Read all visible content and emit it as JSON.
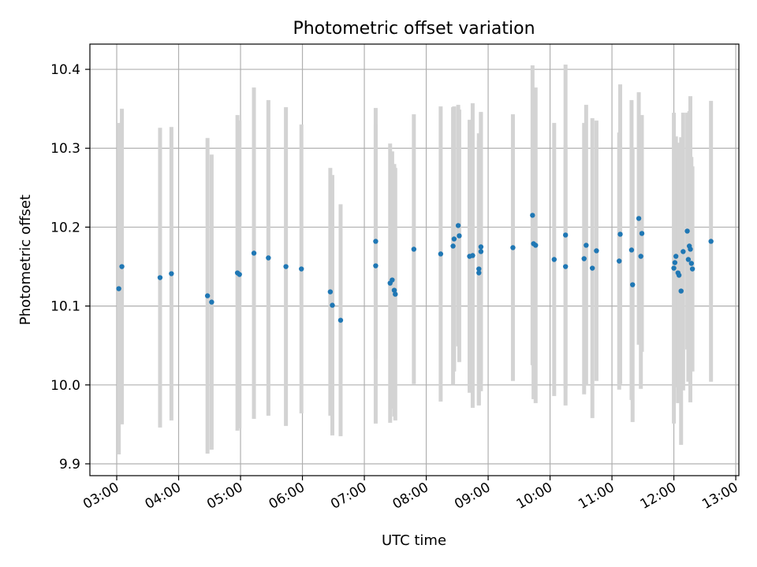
{
  "chart_data": {
    "type": "scatter",
    "title": "Photometric offset variation",
    "xlabel": "UTC time",
    "ylabel": "Photometric offset",
    "x_ticks": [
      "03:00",
      "04:00",
      "05:00",
      "06:00",
      "07:00",
      "08:00",
      "09:00",
      "10:00",
      "11:00",
      "12:00",
      "13:00"
    ],
    "y_ticks": [
      "9.9",
      "10.0",
      "10.1",
      "10.2",
      "10.3",
      "10.4"
    ],
    "xlim": [
      "02:34",
      "13:03"
    ],
    "ylim": [
      9.885,
      10.432
    ],
    "grid": true,
    "colors": {
      "points": "#1f77b4",
      "error_bars": "#d3d3d3",
      "grid": "#b0b0b0"
    },
    "series": [
      {
        "x": [
          "03:02",
          "03:05",
          "03:42",
          "03:53",
          "04:28",
          "04:32",
          "04:57",
          "04:59",
          "05:13",
          "05:27",
          "05:44",
          "05:59",
          "06:27",
          "06:29",
          "06:37",
          "07:11",
          "07:11",
          "07:25",
          "07:27",
          "07:29",
          "07:30",
          "07:48",
          "08:14",
          "08:26",
          "08:27",
          "08:31",
          "08:32",
          "08:42",
          "08:45",
          "08:51",
          "08:51",
          "08:53",
          "08:53",
          "09:24",
          "09:43",
          "09:44",
          "09:46",
          "10:04",
          "10:15",
          "10:15",
          "10:33",
          "10:35",
          "10:41",
          "10:45",
          "11:07",
          "11:08",
          "11:19",
          "11:20",
          "11:26",
          "11:28",
          "11:29",
          "12:00",
          "12:01",
          "12:02",
          "12:04",
          "12:05",
          "12:07",
          "12:09",
          "12:13",
          "12:14",
          "12:15",
          "12:16",
          "12:17",
          "12:18",
          "12:36"
        ],
        "y": [
          10.122,
          10.15,
          10.136,
          10.141,
          10.113,
          10.105,
          10.142,
          10.14,
          10.167,
          10.161,
          10.15,
          10.147,
          10.118,
          10.101,
          10.082,
          10.182,
          10.151,
          10.129,
          10.133,
          10.12,
          10.115,
          10.172,
          10.166,
          10.176,
          10.185,
          10.202,
          10.189,
          10.163,
          10.164,
          10.147,
          10.142,
          10.169,
          10.175,
          10.174,
          10.215,
          10.179,
          10.177,
          10.159,
          10.15,
          10.19,
          10.16,
          10.177,
          10.148,
          10.17,
          10.157,
          10.191,
          10.171,
          10.127,
          10.211,
          10.163,
          10.192,
          10.148,
          10.155,
          10.163,
          10.142,
          10.139,
          10.119,
          10.169,
          10.195,
          10.159,
          10.176,
          10.172,
          10.154,
          10.147,
          10.182
        ],
        "yerr": [
          0.21,
          0.2,
          0.19,
          0.186,
          0.2,
          0.187,
          0.2,
          0.195,
          0.21,
          0.2,
          0.202,
          0.183,
          0.157,
          0.165,
          0.147,
          0.148,
          0.2,
          0.177,
          0.163,
          0.16,
          0.16,
          0.171,
          0.187,
          0.176,
          0.168,
          0.153,
          0.16,
          0.173,
          0.193,
          0.172,
          0.168,
          0.177,
          0.17,
          0.169,
          0.19,
          0.197,
          0.2,
          0.173,
          0.154,
          0.216,
          0.172,
          0.178,
          0.19,
          0.165,
          0.163,
          0.19,
          0.19,
          0.174,
          0.16,
          0.168,
          0.15,
          0.197,
          0.158,
          0.152,
          0.165,
          0.15,
          0.195,
          0.176,
          0.15,
          0.155,
          0.171,
          0.194,
          0.135,
          0.13,
          0.178
        ]
      }
    ]
  }
}
